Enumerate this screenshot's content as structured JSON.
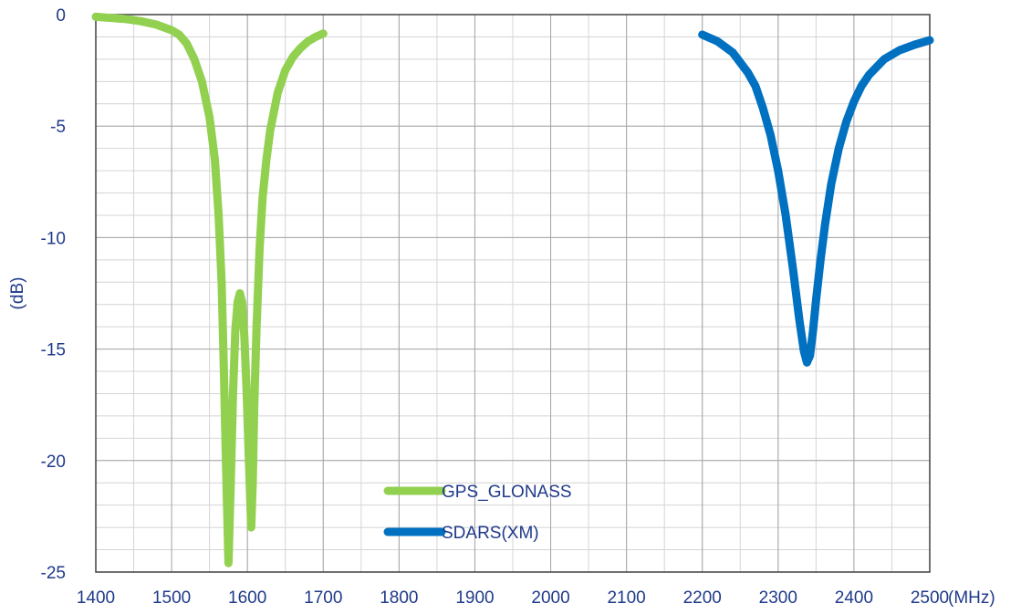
{
  "chart_data": {
    "type": "line",
    "title": "",
    "xlabel": "(MHz)",
    "ylabel": "(dB)",
    "xlim": [
      1400,
      2500
    ],
    "ylim": [
      -25,
      0
    ],
    "x_ticks": [
      1400,
      1500,
      1600,
      1700,
      1800,
      1900,
      2000,
      2100,
      2200,
      2300,
      2400,
      2500
    ],
    "y_ticks": [
      0,
      -5,
      -10,
      -15,
      -20,
      -25
    ],
    "x_minor_step": 50,
    "y_minor_step": 1,
    "grid": true,
    "legend": "bottom-center",
    "series": [
      {
        "name": "GPS_GLONASS",
        "color": "#92d050",
        "points": [
          [
            1400,
            -0.1
          ],
          [
            1420,
            -0.15
          ],
          [
            1440,
            -0.2
          ],
          [
            1460,
            -0.3
          ],
          [
            1480,
            -0.45
          ],
          [
            1500,
            -0.7
          ],
          [
            1510,
            -0.9
          ],
          [
            1520,
            -1.3
          ],
          [
            1530,
            -2.0
          ],
          [
            1540,
            -3.0
          ],
          [
            1550,
            -4.6
          ],
          [
            1557,
            -6.5
          ],
          [
            1562,
            -9.0
          ],
          [
            1566,
            -12.0
          ],
          [
            1569,
            -16.0
          ],
          [
            1572,
            -20.5
          ],
          [
            1575,
            -24.6
          ],
          [
            1578,
            -21.0
          ],
          [
            1581,
            -17.0
          ],
          [
            1584,
            -14.2
          ],
          [
            1587,
            -12.9
          ],
          [
            1590,
            -12.5
          ],
          [
            1593,
            -12.9
          ],
          [
            1596,
            -14.5
          ],
          [
            1599,
            -17.0
          ],
          [
            1602,
            -20.0
          ],
          [
            1605,
            -23.0
          ],
          [
            1607,
            -21.0
          ],
          [
            1609,
            -17.5
          ],
          [
            1612,
            -14.0
          ],
          [
            1616,
            -10.5
          ],
          [
            1620,
            -8.2
          ],
          [
            1625,
            -6.5
          ],
          [
            1630,
            -5.2
          ],
          [
            1640,
            -3.5
          ],
          [
            1650,
            -2.5
          ],
          [
            1660,
            -1.9
          ],
          [
            1670,
            -1.5
          ],
          [
            1680,
            -1.2
          ],
          [
            1690,
            -1.0
          ],
          [
            1700,
            -0.85
          ]
        ]
      },
      {
        "name": "SDARS(XM)",
        "color": "#0070c0",
        "points": [
          [
            2200,
            -0.9
          ],
          [
            2220,
            -1.2
          ],
          [
            2240,
            -1.7
          ],
          [
            2260,
            -2.6
          ],
          [
            2270,
            -3.2
          ],
          [
            2280,
            -4.2
          ],
          [
            2290,
            -5.4
          ],
          [
            2300,
            -7.0
          ],
          [
            2310,
            -9.0
          ],
          [
            2320,
            -11.5
          ],
          [
            2328,
            -13.7
          ],
          [
            2334,
            -15.1
          ],
          [
            2338,
            -15.6
          ],
          [
            2342,
            -15.3
          ],
          [
            2346,
            -14.2
          ],
          [
            2350,
            -12.8
          ],
          [
            2356,
            -11.0
          ],
          [
            2362,
            -9.4
          ],
          [
            2370,
            -7.6
          ],
          [
            2380,
            -6.0
          ],
          [
            2390,
            -4.8
          ],
          [
            2400,
            -3.9
          ],
          [
            2410,
            -3.2
          ],
          [
            2420,
            -2.7
          ],
          [
            2440,
            -2.0
          ],
          [
            2460,
            -1.6
          ],
          [
            2480,
            -1.35
          ],
          [
            2500,
            -1.15
          ]
        ]
      }
    ]
  }
}
